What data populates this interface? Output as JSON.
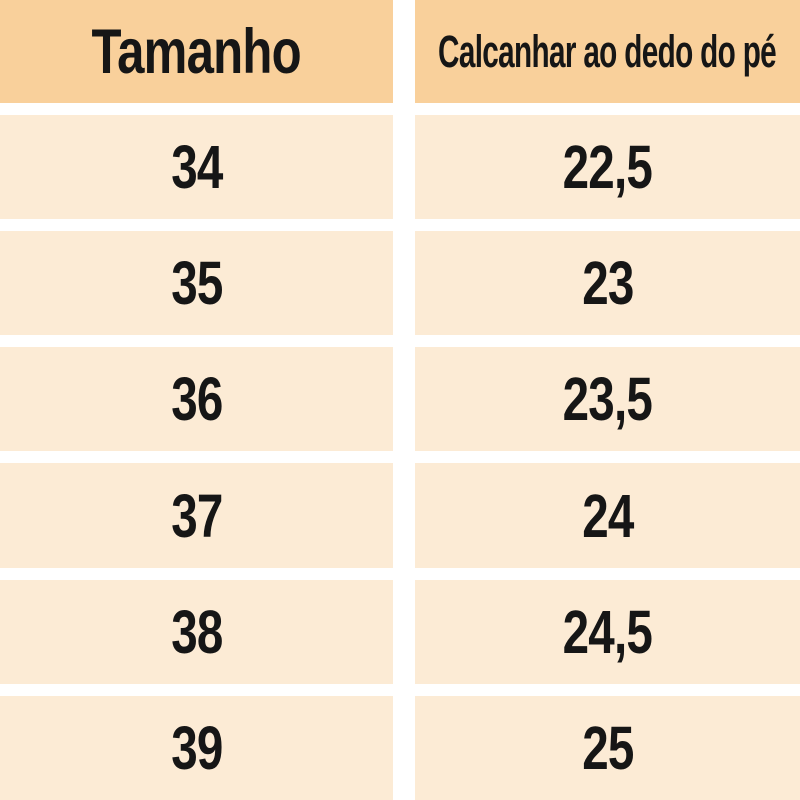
{
  "table": {
    "columns": [
      {
        "label": "Tamanho"
      },
      {
        "label": "Calcanhar ao dedo do pé"
      }
    ],
    "rows": [
      {
        "size": "34",
        "length": "22,5"
      },
      {
        "size": "35",
        "length": "23"
      },
      {
        "size": "36",
        "length": "23,5"
      },
      {
        "size": "37",
        "length": "24"
      },
      {
        "size": "38",
        "length": "24,5"
      },
      {
        "size": "39",
        "length": "25"
      }
    ],
    "colors": {
      "header_bg": "#f9d09b",
      "row_bg": "#fcebd5",
      "text": "#161616",
      "gap": "#ffffff"
    }
  },
  "chart_data": {
    "type": "table",
    "title": "",
    "columns": [
      "Tamanho",
      "Calcanhar ao dedo do pé"
    ],
    "rows": [
      [
        "34",
        "22,5"
      ],
      [
        "35",
        "23"
      ],
      [
        "36",
        "23,5"
      ],
      [
        "37",
        "24"
      ],
      [
        "38",
        "24,5"
      ],
      [
        "39",
        "25"
      ]
    ]
  }
}
